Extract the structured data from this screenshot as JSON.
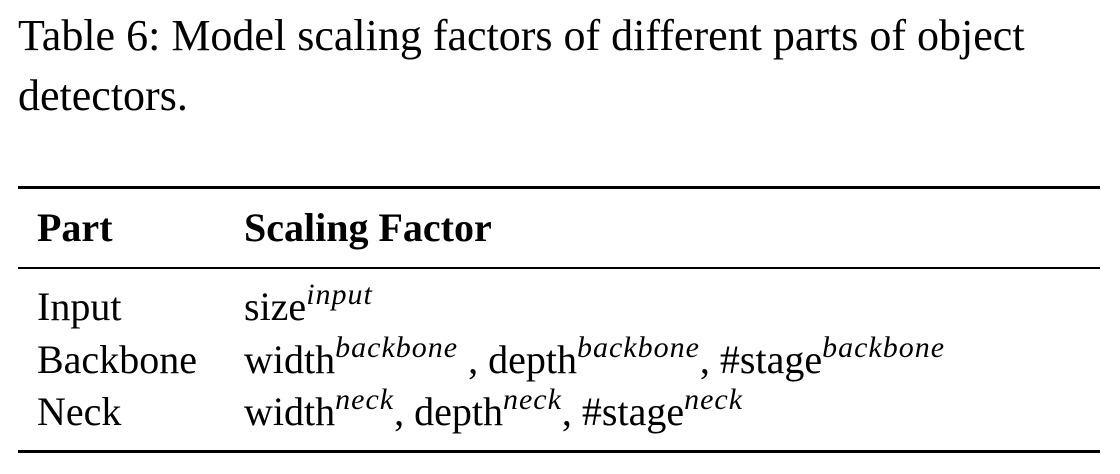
{
  "caption": "Table 6: Model scaling factors of different parts of object detectors.",
  "table": {
    "headers": [
      "Part",
      "Scaling Factor"
    ],
    "rows": [
      {
        "part": "Input",
        "factors": [
          {
            "base": "size",
            "sup": "input",
            "sep": ""
          }
        ]
      },
      {
        "part": "Backbone",
        "factors": [
          {
            "base": "width",
            "sup": "backbone",
            "sep": " ,"
          },
          {
            "base": " depth",
            "sup": "backbone",
            "sep": ","
          },
          {
            "base": " #stage",
            "sup": "backbone",
            "sep": ""
          }
        ]
      },
      {
        "part": "Neck",
        "factors": [
          {
            "base": "width",
            "sup": "neck",
            "sep": ","
          },
          {
            "base": " depth",
            "sup": "neck",
            "sep": ","
          },
          {
            "base": " #stage",
            "sup": "neck",
            "sep": ""
          }
        ]
      }
    ]
  }
}
